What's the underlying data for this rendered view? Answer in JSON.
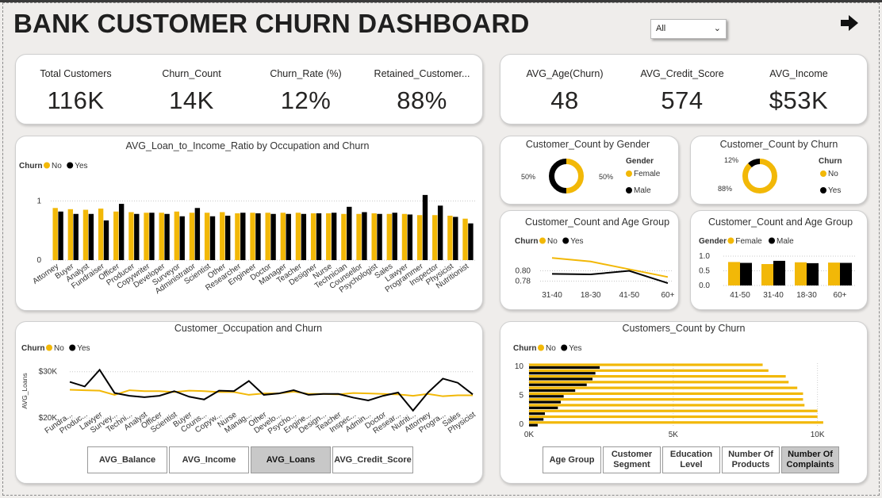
{
  "header": {
    "title": "BANK CUSTOMER CHURN DASHBOARD",
    "slicer_value": "All",
    "nav_icon": "arrow-right-icon"
  },
  "colors": {
    "no": "#F2B807",
    "yes": "#000000"
  },
  "kpis_left": [
    {
      "label": "Total Customers",
      "value": "116K"
    },
    {
      "label": "Churn_Count",
      "value": "14K"
    },
    {
      "label": "Churn_Rate (%)",
      "value": "12%"
    },
    {
      "label": "Retained_Customer...",
      "value": "88%"
    }
  ],
  "kpis_right": [
    {
      "label": "AVG_Age(Churn)",
      "value": "48"
    },
    {
      "label": "AVG_Credit_Score",
      "value": "574"
    },
    {
      "label": "AVG_Income",
      "value": "$53K"
    }
  ],
  "legend_churn": {
    "title": "Churn",
    "no": "No",
    "yes": "Yes"
  },
  "legend_gender": {
    "title": "Gender",
    "female": "Female",
    "male": "Male"
  },
  "buttons_left": [
    {
      "label": "AVG_Balance",
      "selected": false
    },
    {
      "label": "AVG_Income",
      "selected": false
    },
    {
      "label": "AVG_Loans",
      "selected": true
    },
    {
      "label": "AVG_Credit_Score",
      "selected": false
    }
  ],
  "buttons_right": [
    {
      "label": "Age Group",
      "selected": false
    },
    {
      "label": "Customer Segment",
      "selected": false
    },
    {
      "label": "Education Level",
      "selected": false
    },
    {
      "label": "Number Of Products",
      "selected": false
    },
    {
      "label": "Number Of Complaints",
      "selected": true
    }
  ],
  "chart_data": [
    {
      "id": "loan_ratio",
      "type": "bar",
      "title": "AVG_Loan_to_Income_Ratio by Occupation and Churn",
      "categories": [
        "Attorney",
        "Buyer",
        "Analyst",
        "Fundraiser",
        "Officer",
        "Producer",
        "Copywriter",
        "Developer",
        "Surveyor",
        "Administrator",
        "Scientist",
        "Other",
        "Researcher",
        "Engineer",
        "Doctor",
        "Manager",
        "Teacher",
        "Designer",
        "Nurse",
        "Technician",
        "Counsellor",
        "Psychologist",
        "Sales",
        "Lawyer",
        "Programmer",
        "Inspector",
        "Physicist",
        "Nutritionist"
      ],
      "series": [
        {
          "name": "No",
          "values": [
            0.88,
            0.86,
            0.85,
            0.87,
            0.82,
            0.81,
            0.8,
            0.8,
            0.82,
            0.8,
            0.8,
            0.81,
            0.79,
            0.8,
            0.8,
            0.8,
            0.8,
            0.79,
            0.79,
            0.78,
            0.78,
            0.79,
            0.78,
            0.78,
            0.76,
            0.76,
            0.75,
            0.7
          ]
        },
        {
          "name": "Yes",
          "values": [
            0.82,
            0.78,
            0.78,
            0.67,
            0.95,
            0.78,
            0.8,
            0.78,
            0.74,
            0.88,
            0.74,
            0.75,
            0.8,
            0.79,
            0.78,
            0.78,
            0.78,
            0.79,
            0.8,
            0.9,
            0.81,
            0.78,
            0.8,
            0.77,
            1.1,
            0.92,
            0.73,
            0.62
          ]
        }
      ],
      "yticks": [
        0,
        1
      ],
      "ylim": [
        0,
        1.5
      ]
    },
    {
      "id": "gender_donut",
      "type": "pie",
      "title": "Customer_Count by Gender",
      "labels": [
        "Female",
        "Male"
      ],
      "values": [
        50,
        50
      ],
      "data_labels": [
        "50%",
        "50%"
      ]
    },
    {
      "id": "churn_donut",
      "type": "pie",
      "title": "Customer_Count by Churn",
      "labels": [
        "No",
        "Yes"
      ],
      "values": [
        88,
        12
      ],
      "data_labels": [
        "88%",
        "12%"
      ]
    },
    {
      "id": "age_line",
      "type": "line",
      "title": "Customer_Count and Age Group",
      "categories": [
        "31-40",
        "18-30",
        "41-50",
        "60+"
      ],
      "series": [
        {
          "name": "No",
          "values": [
            0.825,
            0.818,
            0.803,
            0.788
          ]
        },
        {
          "name": "Yes",
          "values": [
            0.794,
            0.793,
            0.8,
            0.776
          ]
        }
      ],
      "yticks": [
        0.78,
        0.8
      ],
      "ylim": [
        0.77,
        0.83
      ]
    },
    {
      "id": "age_gender_bar",
      "type": "bar",
      "title": "Customer_Count and Age Group",
      "categories": [
        "41-50",
        "31-40",
        "18-30",
        "60+"
      ],
      "series": [
        {
          "name": "Female",
          "values": [
            0.8,
            0.73,
            0.79,
            0.78
          ]
        },
        {
          "name": "Male",
          "values": [
            0.77,
            0.84,
            0.76,
            0.77
          ]
        }
      ],
      "yticks": [
        0.0,
        0.5,
        1.0
      ],
      "ytick_labels": [
        "0.0",
        "0.5",
        "1.0"
      ],
      "ylim": [
        0,
        1.0
      ]
    },
    {
      "id": "occupation_line",
      "type": "line",
      "title": "Customer_Occupation and Churn",
      "ylabel": "AVG_Loans",
      "categories": [
        "Fundra...",
        "Produc...",
        "Lawyer",
        "Survey...",
        "Techni...",
        "Analyst",
        "Officer",
        "Scientist",
        "Buyer",
        "Couns...",
        "Copyw...",
        "Nurse",
        "Manag...",
        "Other",
        "Develo...",
        "Psycho...",
        "Engine...",
        "Design...",
        "Teacher",
        "Inspec...",
        "Admin...",
        "Doctor",
        "Resear...",
        "Nutriti...",
        "Attorney",
        "Progra...",
        "Sales",
        "Physicist"
      ],
      "series": [
        {
          "name": "No",
          "values": [
            26100,
            26000,
            25900,
            25000,
            26000,
            25800,
            25800,
            25600,
            25900,
            25800,
            25600,
            25600,
            25000,
            25300,
            25300,
            25700,
            25200,
            25200,
            25100,
            25400,
            25300,
            25200,
            25100,
            24800,
            25200,
            24700,
            24900,
            24900
          ]
        },
        {
          "name": "Yes",
          "values": [
            27800,
            26800,
            30400,
            25400,
            24800,
            24500,
            24800,
            25800,
            24600,
            24000,
            25900,
            25800,
            28000,
            25000,
            25300,
            26000,
            25000,
            25200,
            25200,
            24400,
            23800,
            24800,
            25500,
            21600,
            25500,
            28500,
            27600,
            25100
          ]
        }
      ],
      "yticks": [
        20000,
        30000
      ],
      "ytick_labels": [
        "$20K",
        "$30K"
      ],
      "ylim": [
        19000,
        32000
      ]
    },
    {
      "id": "complaints_bar",
      "type": "bar",
      "title": "Customers_Count by Churn",
      "orientation": "horizontal",
      "categories": [
        0,
        1,
        2,
        3,
        4,
        5,
        6,
        7,
        8,
        9,
        10
      ],
      "series": [
        {
          "name": "No",
          "values": [
            10200,
            10000,
            10000,
            9550,
            9500,
            9500,
            9300,
            9000,
            8900,
            8300,
            8100
          ]
        },
        {
          "name": "Yes",
          "values": [
            300,
            500,
            550,
            1000,
            1100,
            1200,
            1600,
            2000,
            2200,
            2300,
            2450
          ]
        }
      ],
      "xticks": [
        0,
        5000,
        10000
      ],
      "xtick_labels": [
        "0K",
        "5K",
        "10K"
      ],
      "yticks": [
        0,
        5,
        10
      ],
      "xlim": [
        0,
        11000
      ]
    }
  ]
}
